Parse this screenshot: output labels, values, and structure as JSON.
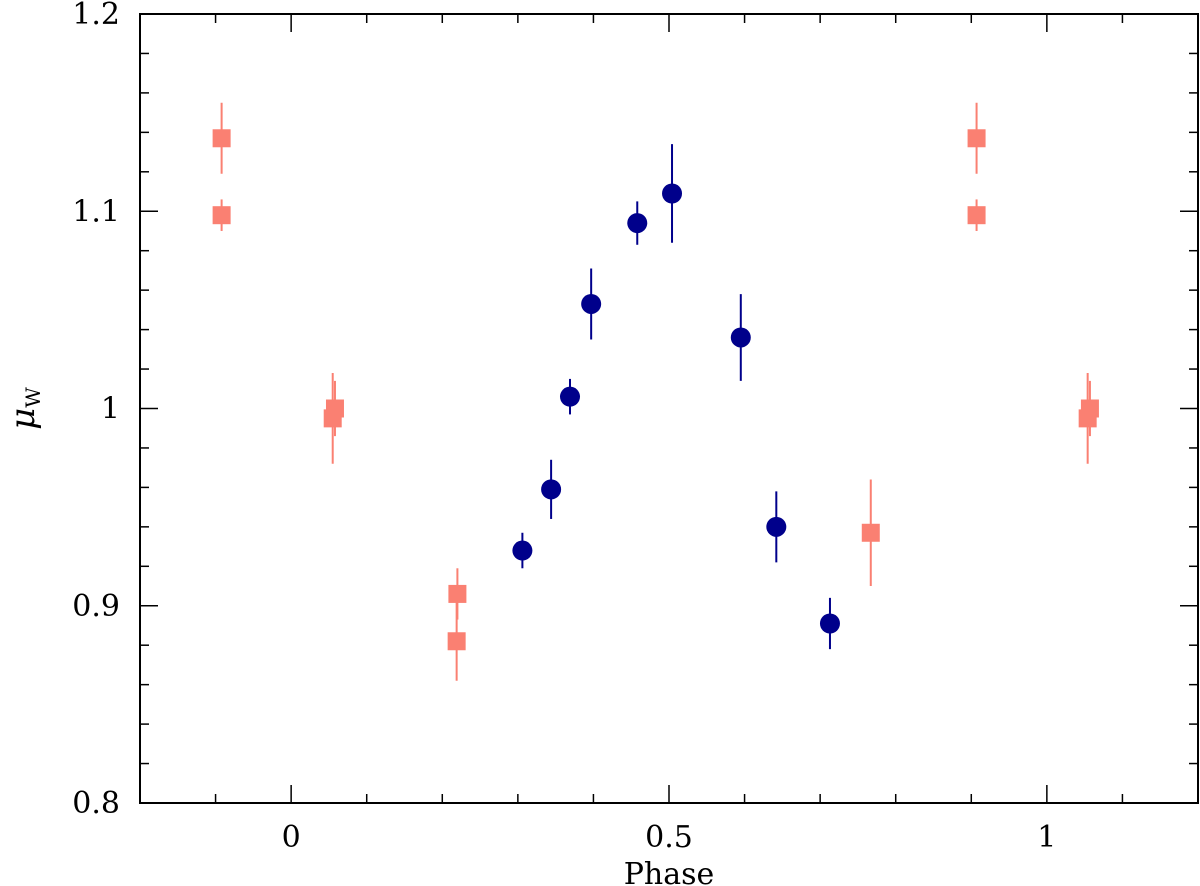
{
  "chart_data": {
    "type": "scatter",
    "xlabel": "Phase",
    "ylabel_main": "μ",
    "ylabel_sub": "W",
    "xlim": [
      -0.2,
      1.2
    ],
    "ylim": [
      0.8,
      1.2
    ],
    "x_ticks": [
      {
        "value": 0,
        "label": "0"
      },
      {
        "value": 0.5,
        "label": "0.5"
      },
      {
        "value": 1,
        "label": "1"
      }
    ],
    "x_minor_step": 0.1,
    "y_ticks": [
      {
        "value": 0.8,
        "label": "0.8"
      },
      {
        "value": 0.9,
        "label": "0.9"
      },
      {
        "value": 1.0,
        "label": "1"
      },
      {
        "value": 1.1,
        "label": "1.1"
      },
      {
        "value": 1.2,
        "label": "1.2"
      }
    ],
    "y_minor_step": 0.02,
    "grid": false,
    "series": [
      {
        "marker": "circle",
        "color": "#00008B",
        "points": [
          {
            "x": 0.306,
            "y": 0.928,
            "err": 0.009
          },
          {
            "x": 0.344,
            "y": 0.959,
            "err": 0.015
          },
          {
            "x": 0.369,
            "y": 1.006,
            "err": 0.009
          },
          {
            "x": 0.397,
            "y": 1.053,
            "err": 0.018
          },
          {
            "x": 0.458,
            "y": 1.094,
            "err": 0.011
          },
          {
            "x": 0.504,
            "y": 1.109,
            "err": 0.025
          },
          {
            "x": 0.595,
            "y": 1.036,
            "err": 0.022
          },
          {
            "x": 0.642,
            "y": 0.94,
            "err": 0.018
          },
          {
            "x": 0.713,
            "y": 0.891,
            "err": 0.013
          }
        ]
      },
      {
        "marker": "square",
        "color": "#FA8072",
        "points": [
          {
            "x": -0.092,
            "y": 1.137,
            "err": 0.018
          },
          {
            "x": -0.092,
            "y": 1.098,
            "err": 0.008
          },
          {
            "x": 0.055,
            "y": 0.995,
            "err": 0.023
          },
          {
            "x": 0.058,
            "y": 1.0,
            "err": 0.014
          },
          {
            "x": 0.22,
            "y": 0.906,
            "err": 0.013
          },
          {
            "x": 0.219,
            "y": 0.882,
            "err": 0.02
          },
          {
            "x": 0.767,
            "y": 0.937,
            "err": 0.027
          },
          {
            "x": 0.907,
            "y": 1.137,
            "err": 0.018
          },
          {
            "x": 0.907,
            "y": 1.098,
            "err": 0.008
          },
          {
            "x": 1.054,
            "y": 0.995,
            "err": 0.023
          },
          {
            "x": 1.057,
            "y": 1.0,
            "err": 0.014
          }
        ]
      }
    ]
  }
}
